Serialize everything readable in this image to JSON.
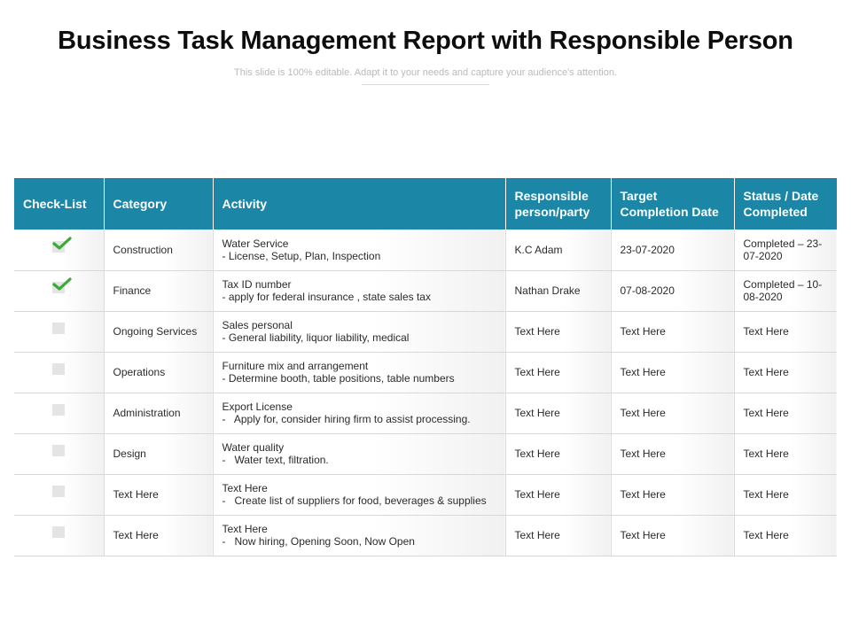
{
  "header": {
    "title": "Business Task Management Report with Responsible Person",
    "subtitle": "This slide is 100% editable. Adapt it to your needs and capture your audience's attention."
  },
  "table": {
    "columns": [
      "Check-List",
      "Category",
      "Activity",
      "Responsible person/party",
      "Target Completion Date",
      "Status / Date Completed"
    ],
    "rows": [
      {
        "checked": true,
        "category": "Construction",
        "activity_title": "Water Service",
        "activity_detail": "- License, Setup, Plan, Inspection",
        "responsible": "K.C Adam",
        "target": "23-07-2020",
        "status": "Completed – 23-07-2020"
      },
      {
        "checked": true,
        "category": "Finance",
        "activity_title": "Tax ID number",
        "activity_detail": "- apply for federal insurance , state sales tax",
        "responsible": "Nathan Drake",
        "target": "07-08-2020",
        "status": "Completed – 10-08-2020"
      },
      {
        "checked": false,
        "category": "Ongoing Services",
        "activity_title": "Sales personal",
        "activity_detail": "- General liability, liquor liability, medical",
        "responsible": "Text Here",
        "target": "Text Here",
        "status": "Text Here"
      },
      {
        "checked": false,
        "category": "Operations",
        "activity_title": "Furniture mix and arrangement",
        "activity_detail": "- Determine booth, table positions, table numbers",
        "responsible": "Text Here",
        "target": "Text Here",
        "status": "Text Here"
      },
      {
        "checked": false,
        "category": "Administration",
        "activity_title": "Export License",
        "activity_detail": "-   Apply for, consider hiring firm to assist processing.",
        "responsible": "Text Here",
        "target": "Text Here",
        "status": "Text Here"
      },
      {
        "checked": false,
        "category": "Design",
        "activity_title": "Water quality",
        "activity_detail": "-   Water text, filtration.",
        "responsible": "Text Here",
        "target": "Text Here",
        "status": "Text Here"
      },
      {
        "checked": false,
        "category": "Text Here",
        "activity_title": "Text Here",
        "activity_detail": "-   Create list of suppliers for food, beverages & supplies",
        "responsible": "Text Here",
        "target": "Text Here",
        "status": "Text Here"
      },
      {
        "checked": false,
        "category": "Text Here",
        "activity_title": "Text Here",
        "activity_detail": "-   Now hiring, Opening Soon, Now Open",
        "responsible": "Text Here",
        "target": "Text Here",
        "status": "Text Here"
      }
    ]
  },
  "colors": {
    "header_bg": "#1b86a6",
    "check_green": "#3aaa35",
    "checkbox_gray": "#e4e4e4"
  },
  "icons": {
    "check": "check-icon",
    "checkbox": "checkbox-icon"
  }
}
